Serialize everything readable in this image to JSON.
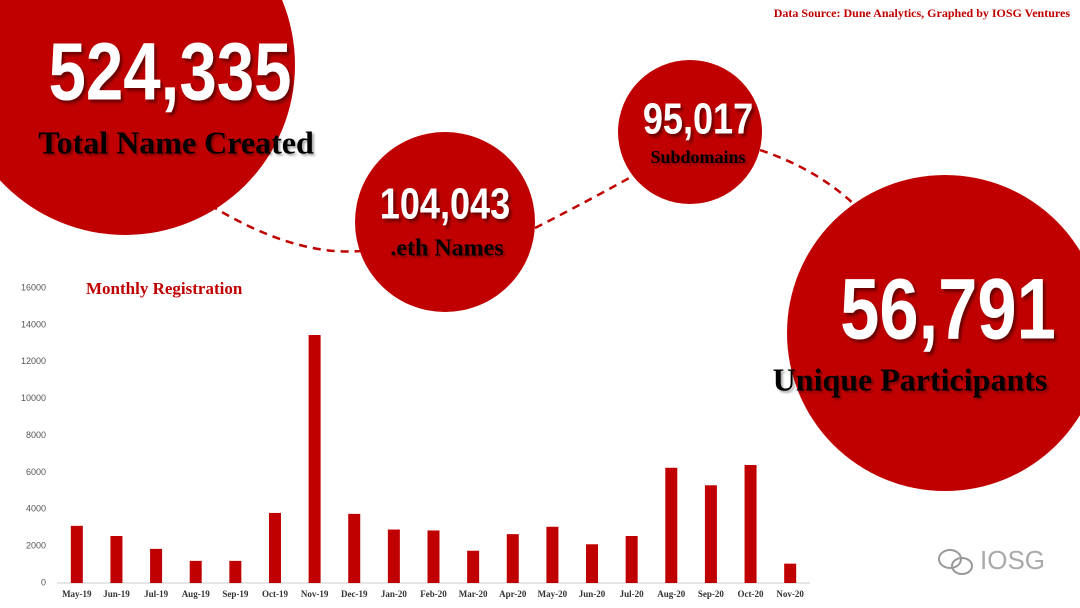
{
  "source": "Data Source: Dune Analytics, Graphed by IOSG Ventures",
  "stats": [
    {
      "value": "524,335",
      "label": "Total Name Created"
    },
    {
      "value": "104,043",
      "label": ".eth Names"
    },
    {
      "value": "95,017",
      "label": "Subdomains"
    },
    {
      "value": "56,791",
      "label": "Unique Participants"
    }
  ],
  "watermark": "IOSG",
  "chart_data": {
    "type": "bar",
    "title": "Monthly Registration",
    "categories": [
      "May-19",
      "Jun-19",
      "Jul-19",
      "Aug-19",
      "Sep-19",
      "Oct-19",
      "Nov-19",
      "Dec-19",
      "Jan-20",
      "Feb-20",
      "Mar-20",
      "Apr-20",
      "May-20",
      "Jun-20",
      "Jul-20",
      "Aug-20",
      "Sep-20",
      "Oct-20",
      "Nov-20"
    ],
    "values": [
      3100,
      2550,
      1850,
      1200,
      1200,
      3800,
      13450,
      3750,
      2900,
      2850,
      1750,
      2650,
      3050,
      2100,
      2550,
      6250,
      5300,
      6400,
      1050
    ],
    "color": "#c00000",
    "ylim": [
      0,
      16000
    ],
    "yticks": [
      0,
      2000,
      4000,
      6000,
      8000,
      10000,
      12000,
      14000,
      16000
    ],
    "grid": false
  }
}
